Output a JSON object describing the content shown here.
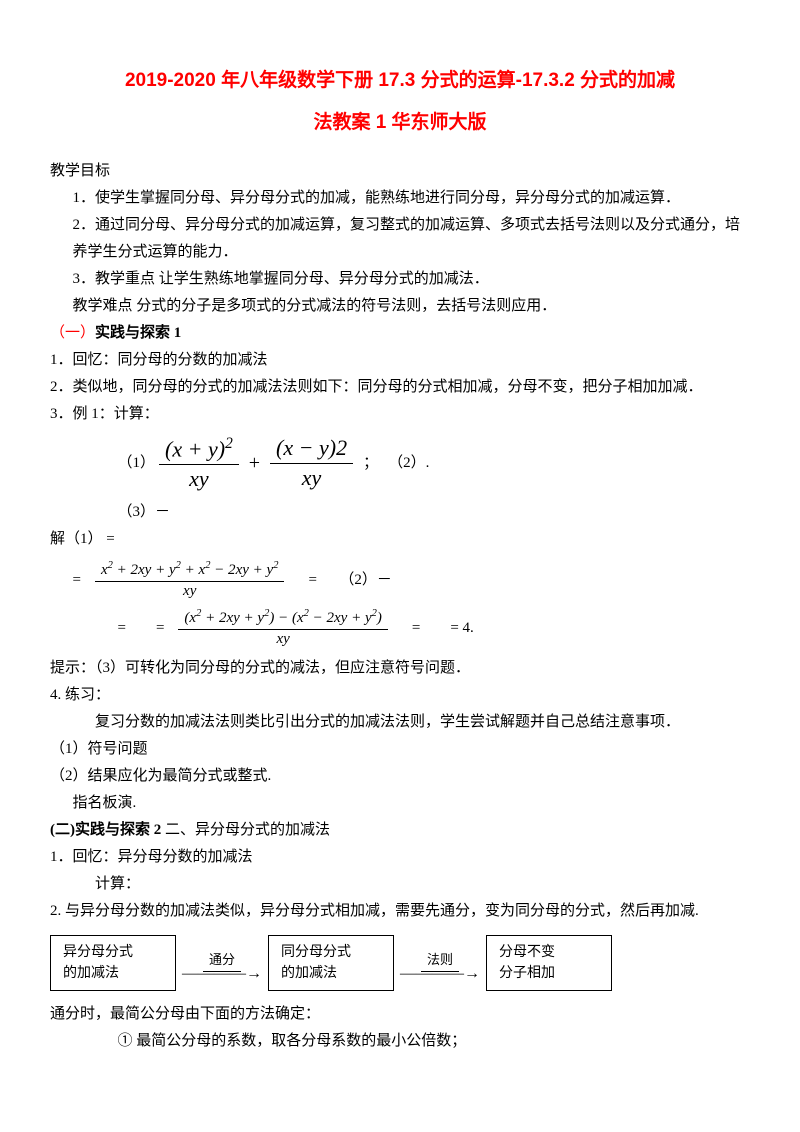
{
  "title_line1": "2019-2020 年八年级数学下册 17.3 分式的运算-17.3.2 分式的加减",
  "title_line2": "法教案 1 华东师大版",
  "goals_header": "教学目标",
  "goal1": "1．使学生掌握同分母、异分母分式的加减，能熟练地进行同分母，异分母分式的加减运算．",
  "goal2": "2．通过同分母、异分母分式的加减运算，复习整式的加减运算、多项式去括号法则以及分式通分，培养学生分式运算的能力．",
  "goal3": "3．教学重点 让学生熟练地掌握同分母、异分母分式的加减法．",
  "difficulty": "教学难点  分式的分子是多项式的分式减法的符号法则，去括号法则应用．",
  "s1_header_prefix": "（一）",
  "s1_header_bold": "实践与探索 1",
  "s1_p1": "1．回忆：同分母的分数的加减法",
  "s1_p2": "2．类似地，同分母的分式的加减法法则如下：同分母的分式相加减，分母不变，把分子相加加减．",
  "s1_p3": "3．例 1：计算：",
  "ex1_label": "（1）",
  "ex1_semicolon": "；",
  "ex2_label": "（2）.",
  "ex3_label": "（3）－",
  "sol_label": "解（1）  =",
  "sol_line2_pre": "=",
  "sol_line2_post": "=　　（2）－",
  "sol_line3_pre": "=　　=",
  "sol_line3_post": "=　　= 4.",
  "hint": "提示：（3）可转化为同分母的分式的减法，但应注意符号问题．",
  "practice_header": "4. 练习：",
  "practice_p": "复习分数的加减法法则类比引出分式的加减法法则，学生尝试解题并自己总结注意事项．",
  "practice_1": "（1）符号问题",
  "practice_2": "（2）结果应化为最简分式或整式.",
  "practice_3": "指名板演.",
  "s2_header_prefix": "(二)",
  "s2_header_bold": "实践与探索 2",
  "s2_header_rest": " 二、异分母分式的加减法",
  "s2_p1": "1．回忆：异分母分数的加减法",
  "s2_p1b": "计算：",
  "s2_p2": "2. 与异分母分数的加减法类似，异分母分式相加减，需要先通分，变为同分母的分式，然后再加减.",
  "flow_box1_l1": "异分母分式",
  "flow_box1_l2": "的加减法",
  "flow_arrow1": "通分",
  "flow_box2_l1": "同分母分式",
  "flow_box2_l2": "的加减法",
  "flow_arrow2": "法则",
  "flow_box3_l1": "分母不变",
  "flow_box3_l2": "分子相加",
  "s2_p3": "通分时，最简公分母由下面的方法确定：",
  "s2_p3_1": "① 最简公分母的系数，取各分母系数的最小公倍数；",
  "formulas": {
    "f1_num": "(<i>x</i> + <i>y</i>)<sup>2</sup>",
    "f1_den": "<i>xy</i>",
    "f2_num": "(<i>x</i> − <i>y</i>)2",
    "f2_den": "<i>xy</i>",
    "f3_num": "<i>x</i><sup>2</sup> + 2<i>xy</i> + <i>y</i><sup>2</sup> + <i>x</i><sup>2</sup> − 2<i>xy</i> + <i>y</i><sup>2</sup>",
    "f3_den": "<i>xy</i>",
    "f4_num": "(<i>x</i><sup>2</sup> + 2<i>xy</i> + <i>y</i><sup>2</sup>) − (<i>x</i><sup>2</sup> − 2<i>xy</i> + <i>y</i><sup>2</sup>)",
    "f4_den": "<i>xy</i>"
  }
}
